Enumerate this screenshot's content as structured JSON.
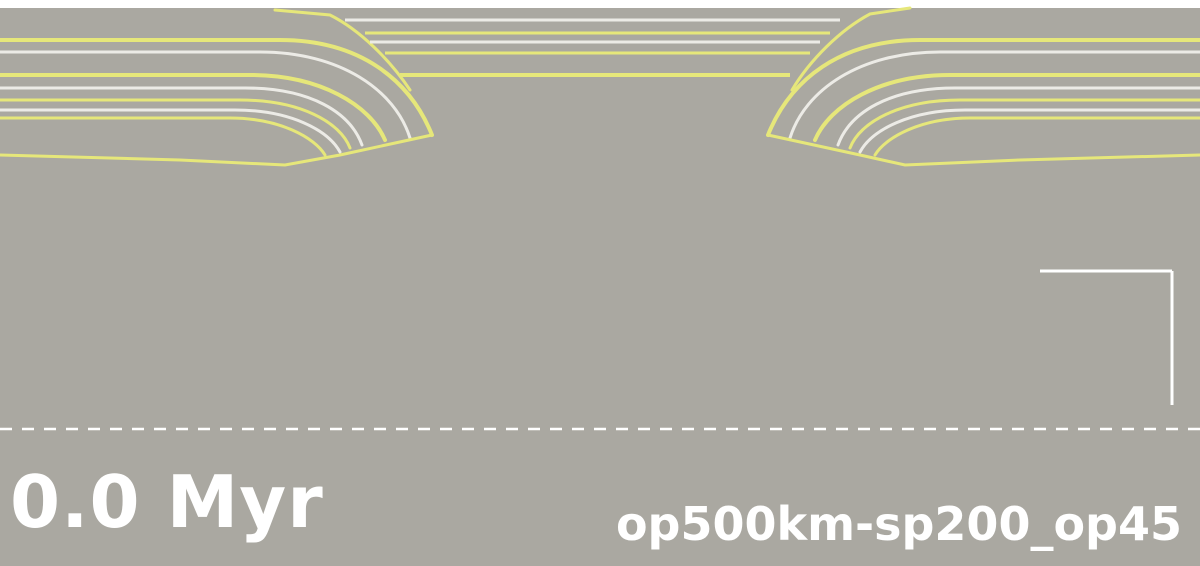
{
  "time_label": "0.0 Myr",
  "model_label": "op500km-sp200_op45",
  "colors": {
    "background": "#aaa8a1",
    "yellow_contour": "#e6e77a",
    "white_contour": "#ecebe6",
    "annotation": "#ffffff"
  }
}
